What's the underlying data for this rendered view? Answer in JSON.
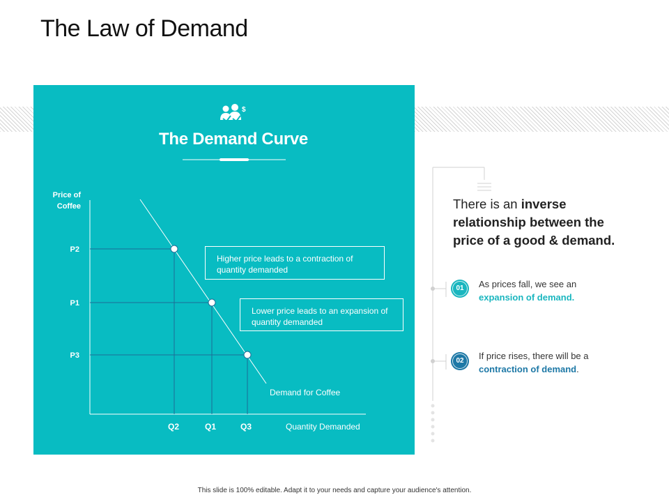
{
  "slide": {
    "title": "The Law of Demand",
    "footer": "This slide is 100% editable. Adapt it to your needs and capture your audience's attention."
  },
  "panel": {
    "icon": "people-dollar-icon",
    "title": "The Demand Curve",
    "background_color": "#08bcc2"
  },
  "diagram": {
    "y_axis_label_line1": "Price of",
    "y_axis_label_line2": "Coffee",
    "x_axis_label": "Quantity Demanded",
    "curve_label": "Demand for Coffee",
    "price_labels": [
      "P2",
      "P1",
      "P3"
    ],
    "quantity_labels": [
      "Q2",
      "Q1",
      "Q3"
    ],
    "callout_higher": "Higher price leads to a contraction of quantity demanded",
    "callout_lower": "Lower price leads to an expansion of quantity demanded"
  },
  "statement": {
    "part1": "There is an ",
    "bold1": "inverse relationship between the price of a good & demand."
  },
  "points": [
    {
      "number": "01",
      "text_before": "As prices fall, we see an ",
      "highlight": "expansion of demand.",
      "color": "#1ab6bf"
    },
    {
      "number": "02",
      "text_before": "If price rises, there will be a ",
      "highlight": "contraction of demand",
      "text_after": ".",
      "color": "#1d78a6"
    }
  ]
}
